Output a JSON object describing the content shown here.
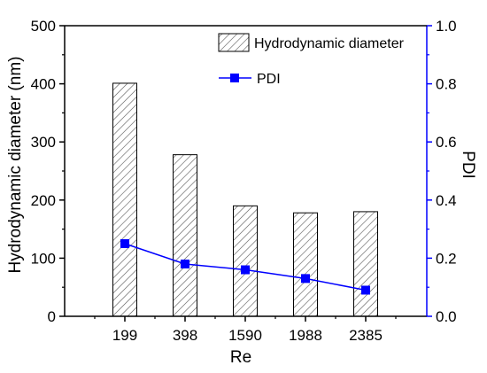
{
  "chart_data": {
    "type": "bar+line",
    "categories": [
      "199",
      "398",
      "1590",
      "1988",
      "2385"
    ],
    "xlabel": "Re",
    "series": [
      {
        "name": "Hydrodynamic diameter",
        "type": "bar",
        "axis": "left",
        "values": [
          401,
          278,
          190,
          178,
          180
        ],
        "pattern": "diagonal-hatch",
        "color": "#000000"
      },
      {
        "name": "PDI",
        "type": "line",
        "axis": "right",
        "values": [
          0.25,
          0.18,
          0.16,
          0.13,
          0.09
        ],
        "marker": "square",
        "color": "#0000ff"
      }
    ],
    "y_left": {
      "label": "Hydrodynamic diameter (nm)",
      "lim": [
        0,
        500
      ],
      "ticks": [
        "0",
        "100",
        "200",
        "300",
        "400",
        "500"
      ]
    },
    "y_right": {
      "label": "PDI",
      "lim": [
        0,
        1.0
      ],
      "ticks": [
        "0.0",
        "0.2",
        "0.4",
        "0.6",
        "0.8",
        "1.0"
      ],
      "color": "#0000ff"
    },
    "legend": {
      "placement": "top-right",
      "entries": [
        "Hydrodynamic diameter",
        "PDI"
      ]
    },
    "grid": false
  }
}
